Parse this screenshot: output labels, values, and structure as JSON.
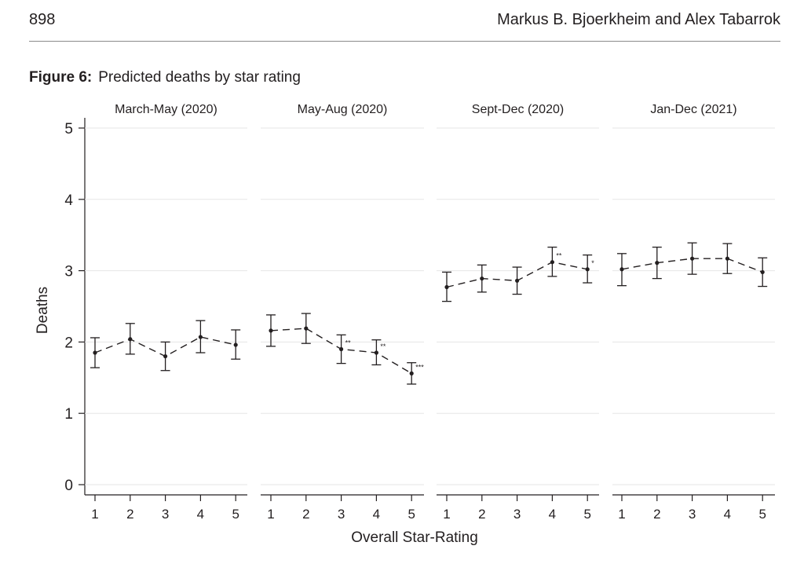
{
  "page": {
    "page_number": "898",
    "running_head": "Markus B. Bjoerkheim and Alex Tabarrok"
  },
  "figure": {
    "label": "Figure 6:",
    "caption": "Predicted deaths by star rating"
  },
  "chart_data": {
    "type": "line",
    "ylabel": "Deaths",
    "xlabel": "Overall Star-Rating",
    "ylim": [
      0,
      5
    ],
    "yticks": [
      0,
      1,
      2,
      3,
      4,
      5
    ],
    "categories": [
      "1",
      "2",
      "3",
      "4",
      "5"
    ],
    "grid": true,
    "line_style": "dashed",
    "error_bars": true,
    "panels": [
      {
        "title": "March-May (2020)",
        "values": [
          1.85,
          2.04,
          1.8,
          2.07,
          1.96
        ],
        "lower": [
          1.64,
          1.83,
          1.6,
          1.85,
          1.76
        ],
        "upper": [
          2.06,
          2.26,
          2.0,
          2.3,
          2.17
        ],
        "stars": [
          "",
          "",
          "",
          "",
          ""
        ]
      },
      {
        "title": "May-Aug (2020)",
        "values": [
          2.16,
          2.19,
          1.9,
          1.85,
          1.56
        ],
        "lower": [
          1.94,
          1.98,
          1.7,
          1.68,
          1.41
        ],
        "upper": [
          2.38,
          2.4,
          2.1,
          2.03,
          1.71
        ],
        "stars": [
          "",
          "",
          "**",
          "**",
          "***"
        ]
      },
      {
        "title": "Sept-Dec (2020)",
        "values": [
          2.77,
          2.89,
          2.86,
          3.12,
          3.02
        ],
        "lower": [
          2.57,
          2.7,
          2.67,
          2.92,
          2.83
        ],
        "upper": [
          2.98,
          3.08,
          3.05,
          3.33,
          3.22
        ],
        "stars": [
          "",
          "",
          "",
          "**",
          "*"
        ]
      },
      {
        "title": "Jan-Dec (2021)",
        "values": [
          3.02,
          3.11,
          3.17,
          3.17,
          2.98
        ],
        "lower": [
          2.79,
          2.89,
          2.95,
          2.96,
          2.78
        ],
        "upper": [
          3.24,
          3.33,
          3.39,
          3.38,
          3.18
        ],
        "stars": [
          "",
          "",
          "",
          "",
          ""
        ]
      }
    ]
  }
}
